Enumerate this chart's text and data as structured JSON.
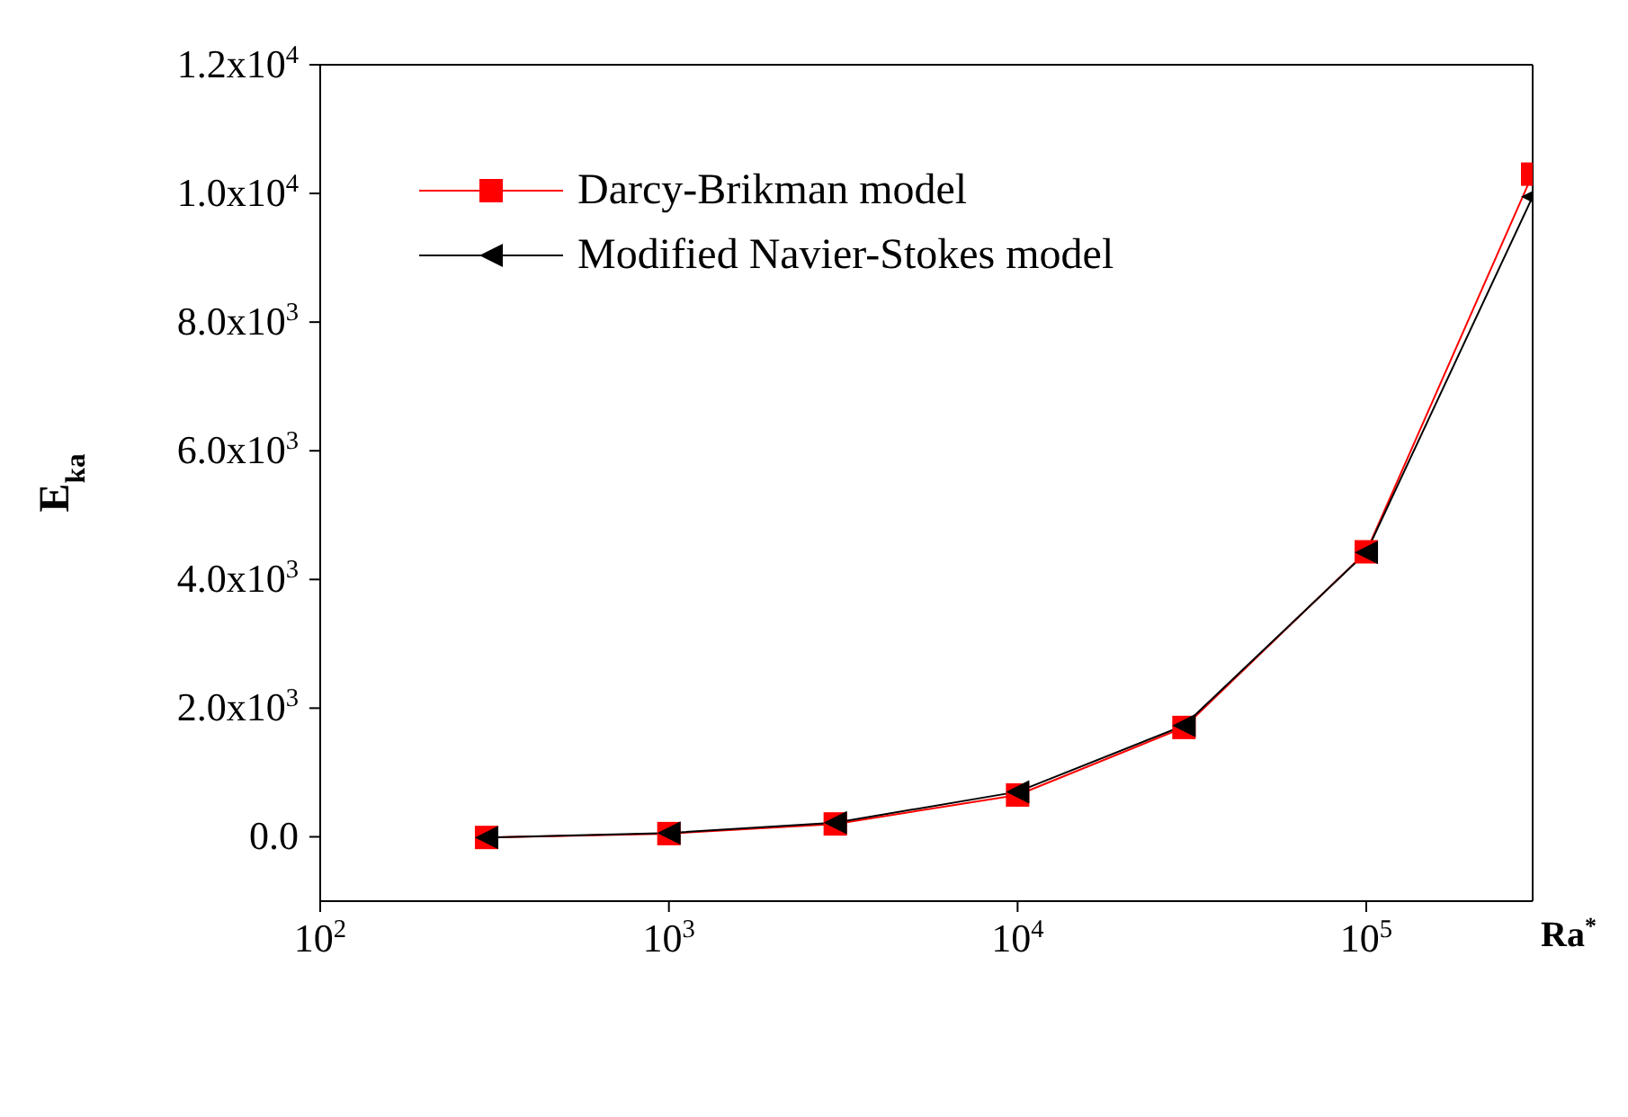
{
  "chart_data": {
    "type": "line",
    "xlabel": "Ra$^{*}$",
    "ylabel": "E$_{ka}$",
    "x": [
      300,
      1000,
      3000,
      10000,
      30000,
      100000,
      300000
    ],
    "series": [
      {
        "name": "Darcy-Brikman model",
        "color": "#ff0000",
        "marker": "square",
        "values": [
          -10,
          50,
          200,
          650,
          1700,
          4430,
          10300
        ]
      },
      {
        "name": "Modified Navier-Stokes model",
        "color": "#000000",
        "marker": "triangle",
        "values": [
          -10,
          60,
          220,
          700,
          1730,
          4420,
          9950
        ]
      }
    ],
    "log": "x",
    "xlim": [
      100,
      300000
    ],
    "xticks": [
      {
        "value": 100,
        "label": "10$^{2}$"
      },
      {
        "value": 1000,
        "label": "10$^{3}$"
      },
      {
        "value": 10000,
        "label": "10$^{4}$"
      },
      {
        "value": 100000,
        "label": "10$^{5}$"
      }
    ],
    "ylim": [
      -1000,
      12000
    ],
    "yticks": [
      {
        "value": 0,
        "label": "0.0"
      },
      {
        "value": 2000,
        "label": "2.0x10$^{3}$"
      },
      {
        "value": 4000,
        "label": "4.0x10$^{3}$"
      },
      {
        "value": 6000,
        "label": "6.0x10$^{3}$"
      },
      {
        "value": 8000,
        "label": "8.0x10$^{3}$"
      },
      {
        "value": 10000,
        "label": "1.0x10$^{4}$"
      },
      {
        "value": 12000,
        "label": "1.2x10$^{4}$"
      }
    ],
    "grid": false,
    "legend": "top left"
  }
}
